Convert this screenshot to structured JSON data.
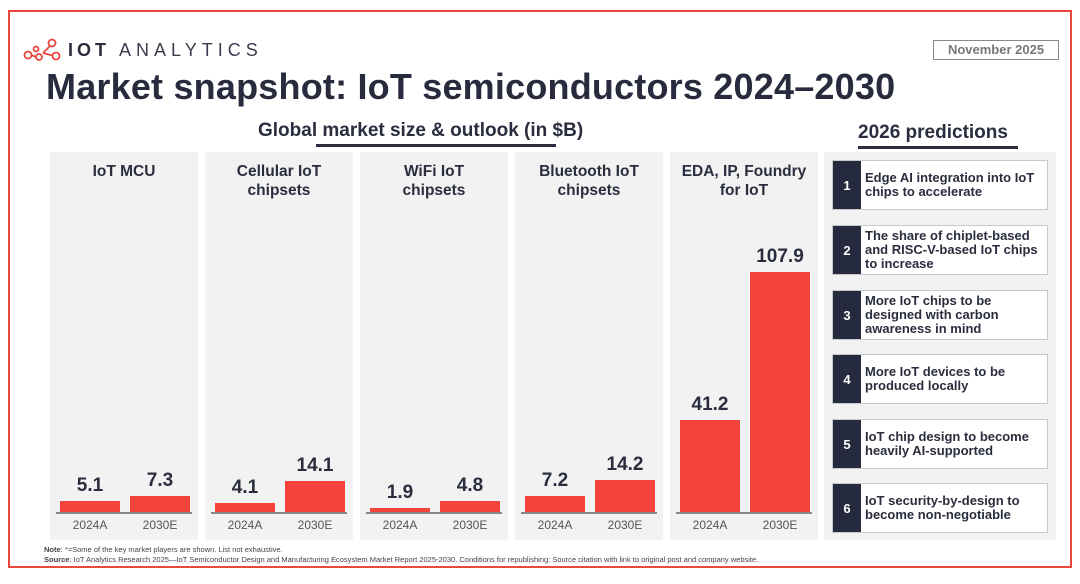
{
  "brand": {
    "name_bold": "IOT",
    "name_light": "ANALYTICS",
    "logo_icon": "network-nodes-icon",
    "accent_color": "#e8483e"
  },
  "date_badge": "November 2025",
  "title": "Market snapshot: IoT semiconductors 2024–2030",
  "subtitle": "Global market size & outlook (in $B)",
  "predictions_title": "2026 predictions",
  "predictions": [
    {
      "num": "1",
      "text": "Edge AI integration into IoT chips to accelerate"
    },
    {
      "num": "2",
      "text": "The share of chiplet-based and RISC-V-based IoT chips to increase"
    },
    {
      "num": "3",
      "text": "More IoT chips to be designed with carbon awareness in mind"
    },
    {
      "num": "4",
      "text": "More IoT devices to be produced locally"
    },
    {
      "num": "5",
      "text": "IoT chip design to become heavily AI-supported"
    },
    {
      "num": "6",
      "text": "IoT security-by-design to become non-negotiable"
    }
  ],
  "chart_data": {
    "type": "bar",
    "title": "Global market size & outlook (in $B)",
    "categories": [
      "2024A",
      "2030E"
    ],
    "ylabel": "Market size ($B)",
    "ylim": [
      0,
      107.9
    ],
    "grid": false,
    "bar_color": "#f4433a",
    "panels": [
      {
        "name": "IoT MCU",
        "values": [
          5.1,
          7.3
        ],
        "labels": [
          "5.1",
          "7.3"
        ]
      },
      {
        "name": "Cellular IoT chipsets",
        "values": [
          4.1,
          14.1
        ],
        "labels": [
          "4.1",
          "14.1"
        ]
      },
      {
        "name": "WiFi IoT chipsets",
        "values": [
          1.9,
          4.8
        ],
        "labels": [
          "1.9",
          "4.8"
        ]
      },
      {
        "name": "Bluetooth IoT chipsets",
        "values": [
          7.2,
          14.2
        ],
        "labels": [
          "7.2",
          "14.2"
        ]
      },
      {
        "name": "EDA, IP, Foundry for IoT",
        "values": [
          41.2,
          107.9
        ],
        "labels": [
          "41.2",
          "107.9"
        ]
      }
    ]
  },
  "panel_titles": [
    [
      "IoT MCU"
    ],
    [
      "Cellular IoT",
      "chipsets"
    ],
    [
      "WiFi IoT",
      "chipsets"
    ],
    [
      "Bluetooth IoT",
      "chipsets"
    ],
    [
      "EDA, IP, Foundry",
      "for IoT"
    ]
  ],
  "footer": {
    "note_label": "Note",
    "note_text": ": *=Some of the key market players are shown. List not exhaustive.",
    "source_label": "Source",
    "source_text": ": IoT Analytics Research 2025—IoT Semiconductor Design and Manufacturing Ecosystem Market Report 2025-2030. Conditions for republishing: Source citation with link to original post and company website."
  }
}
